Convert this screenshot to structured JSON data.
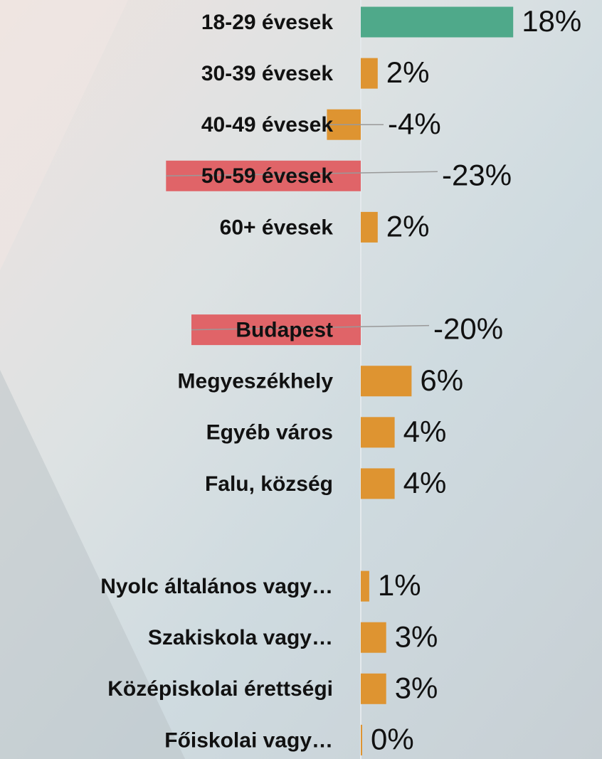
{
  "chart_data": {
    "type": "hbar",
    "categories": [
      "18-29 évesek",
      "30-39 évesek",
      "40-49 évesek",
      "50-59 évesek",
      "60+ évesek",
      null,
      "Budapest",
      "Megyeszékhely",
      "Egyéb város",
      "Falu, község",
      null,
      "Nyolc általános vagy…",
      "Szakiskola vagy…",
      "Középiskolai érettségi",
      "Főiskolai vagy…"
    ],
    "values": [
      18,
      2,
      -4,
      -23,
      2,
      null,
      -20,
      6,
      4,
      4,
      null,
      1,
      3,
      3,
      0
    ],
    "value_labels": [
      "18%",
      "2%",
      "-4%",
      "-23%",
      "2%",
      null,
      "-20%",
      "6%",
      "4%",
      "4%",
      null,
      "1%",
      "3%",
      "3%",
      "0%"
    ],
    "colors": [
      "#4fa98a",
      "#de9431",
      "#de9431",
      "#e06468",
      "#de9431",
      null,
      "#e06468",
      "#de9431",
      "#de9431",
      "#de9431",
      null,
      "#de9431",
      "#de9431",
      "#de9431",
      "#de9431"
    ]
  }
}
